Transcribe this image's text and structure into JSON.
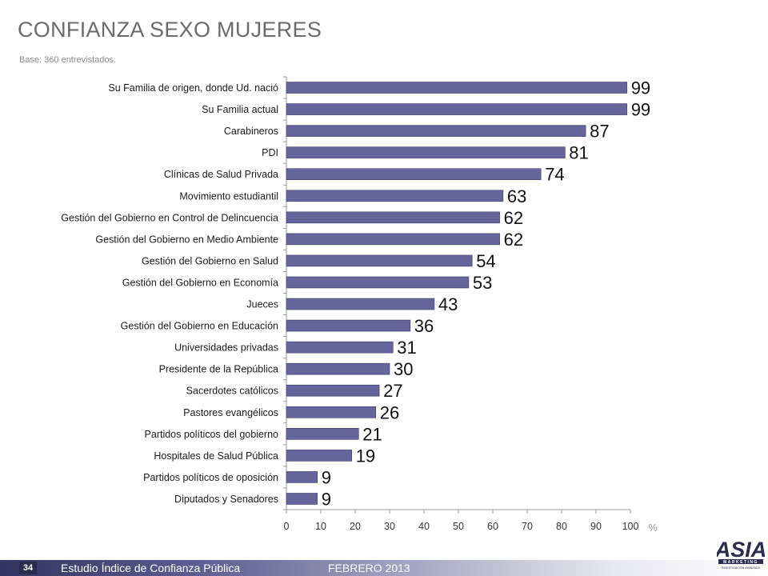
{
  "page": {
    "title": "CONFIANZA SEXO MUJERES",
    "subtitle": "Base:  360 entrevistados."
  },
  "footer": {
    "page_number": "34",
    "study_title": "Estudio  Índice de Confianza Pública",
    "date": "FEBRERO 2013",
    "logo_text": "ASIA",
    "logo_subtext": "MARKETING",
    "logo_tagline": "INVESTIGACIÓN AVANZADA"
  },
  "colors": {
    "bar": "#65659b",
    "bar_outline": "#3e3e6b",
    "axis": "#999999",
    "footer_dark": "#34345f"
  },
  "chart_data": {
    "type": "bar",
    "orientation": "horizontal",
    "categories": [
      "Su Familia de origen, donde Ud. nació",
      "Su Familia actual",
      "Carabineros",
      "PDI",
      "Clínicas de Salud Privada",
      "Movimiento estudiantil",
      "Gestión del Gobierno en Control de Delincuencia",
      "Gestión del Gobierno en Medio Ambiente",
      "Gestión del Gobierno en Salud",
      "Gestión del Gobierno en Economía",
      "Jueces",
      "Gestión del Gobierno en Educación",
      "Universidades privadas",
      "Presidente de la República",
      "Sacerdotes católicos",
      "Pastores evangélicos",
      "Partidos políticos del gobierno",
      "Hospitales de Salud Pública",
      "Partidos políticos de oposición",
      "Diputados y Senadores"
    ],
    "values": [
      99,
      99,
      87,
      81,
      74,
      63,
      62,
      62,
      54,
      53,
      43,
      36,
      31,
      30,
      27,
      26,
      21,
      19,
      9,
      9
    ],
    "xlim": [
      0,
      100
    ],
    "xticks": [
      0,
      10,
      20,
      30,
      40,
      50,
      60,
      70,
      80,
      90,
      100
    ],
    "xunit": "%",
    "grid": false,
    "legend": "none"
  }
}
